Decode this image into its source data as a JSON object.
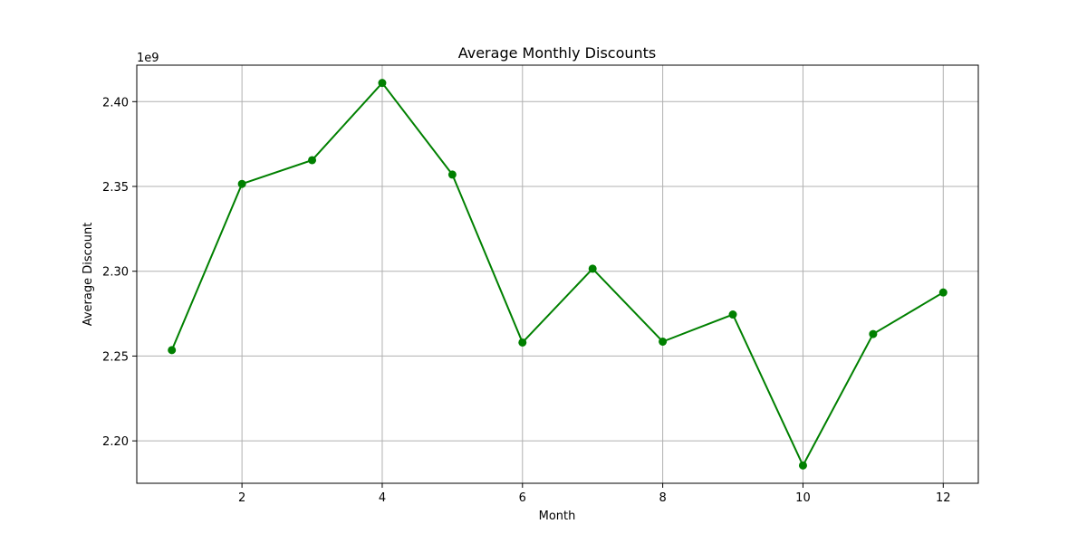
{
  "chart_data": {
    "type": "line",
    "title": "Average Monthly Discounts",
    "xlabel": "Month",
    "ylabel": "Average Discount",
    "y_offset_label": "1e9",
    "xlim": [
      0.5,
      12.5
    ],
    "ylim": [
      2.175,
      2.4215
    ],
    "x_ticks": [
      2,
      4,
      6,
      8,
      10,
      12
    ],
    "x_tick_labels": [
      "2",
      "4",
      "6",
      "8",
      "10",
      "12"
    ],
    "y_ticks": [
      2.2,
      2.25,
      2.3,
      2.35,
      2.4
    ],
    "y_tick_labels": [
      "2.20",
      "2.25",
      "2.30",
      "2.35",
      "2.40"
    ],
    "grid": true,
    "color": "#008000",
    "marker": "circle",
    "x": [
      1,
      2,
      3,
      4,
      5,
      6,
      7,
      8,
      9,
      10,
      11,
      12
    ],
    "y": [
      2.2535,
      2.3515,
      2.3655,
      2.411,
      2.357,
      2.258,
      2.3015,
      2.2585,
      2.2745,
      2.1855,
      2.263,
      2.2875
    ]
  }
}
